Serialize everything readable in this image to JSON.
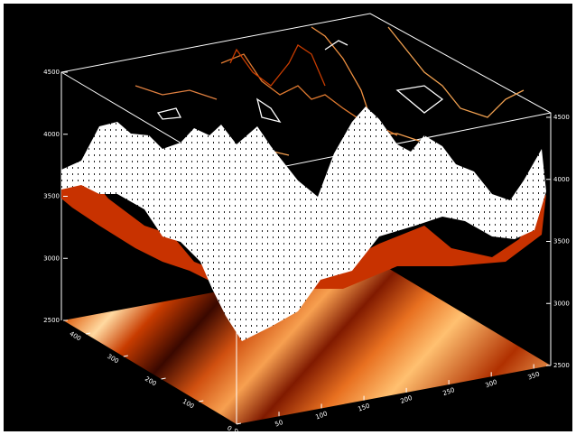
{
  "chart_data": {
    "type": "surface",
    "zlim": [
      2500,
      4500
    ],
    "zticks": [
      2500,
      3000,
      3500,
      4000,
      4500
    ],
    "xlim": [
      0,
      370
    ],
    "xticks": [
      0,
      50,
      100,
      150,
      200,
      250,
      300,
      350
    ],
    "ylim": [
      0,
      460
    ],
    "yticks": [
      0,
      100,
      200,
      300,
      400
    ]
  }
}
